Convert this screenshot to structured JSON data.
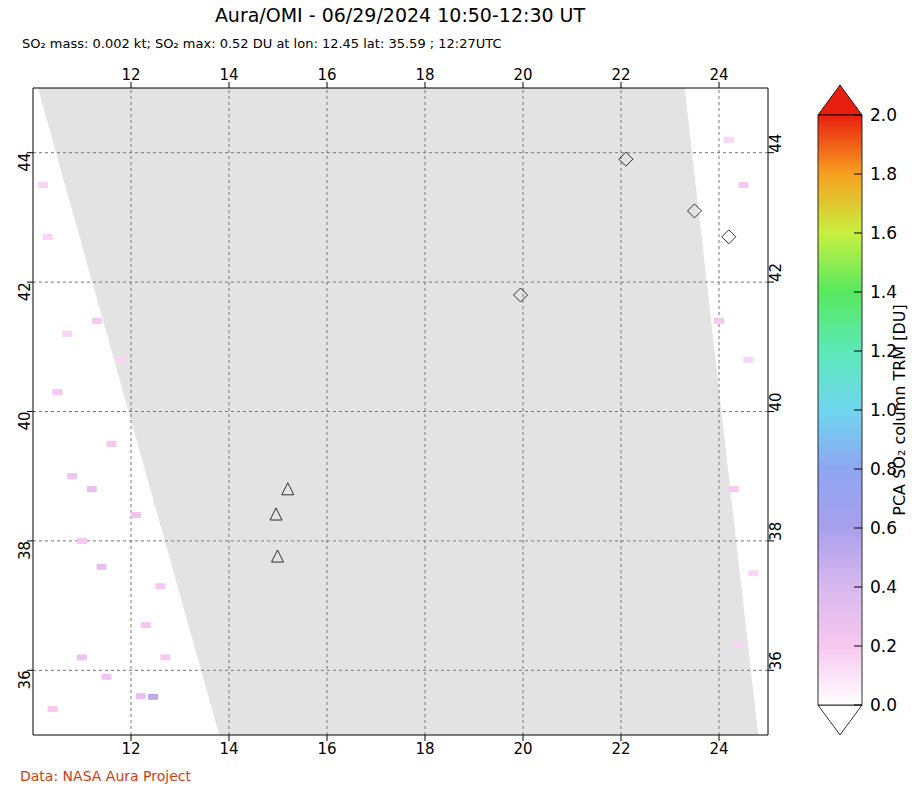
{
  "chart_data": {
    "type": "map",
    "title": "Aura/OMI - 06/29/2024 10:50-12:30 UT",
    "subtitle": "SO₂ mass: 0.002 kt; SO₂ max: 0.52 DU at lon: 12.45 lat: 35.59 ; 12:27UTC",
    "source": "Data: NASA Aura Project",
    "xlim": [
      10,
      25
    ],
    "ylim": [
      35,
      45
    ],
    "xticks": [
      12,
      14,
      16,
      18,
      20,
      22,
      24
    ],
    "yticks": [
      36,
      38,
      40,
      42,
      44
    ],
    "grid": true,
    "color": "#e3e3e3",
    "swath": {
      "x": [
        10.1,
        13.8,
        23.3,
        24.8
      ],
      "low": [
        45,
        35,
        35,
        35
      ],
      "high": [
        45,
        45,
        45,
        35
      ]
    },
    "pixels": {
      "x": [
        10.5,
        10.8,
        11.2,
        11.6,
        12.1,
        11.4,
        12.3,
        11.0,
        12.2,
        12.45,
        10.7,
        11.3,
        10.3,
        11.0,
        12.6,
        11.8,
        10.4,
        11.5,
        10.2,
        12.7,
        24.2,
        24.5,
        24.0,
        24.6,
        24.3,
        24.7,
        24.4
      ],
      "y": [
        40.3,
        39.0,
        38.8,
        39.5,
        38.4,
        37.6,
        36.7,
        36.2,
        35.6,
        35.59,
        41.2,
        41.4,
        42.7,
        38.0,
        37.3,
        40.8,
        35.4,
        35.9,
        43.5,
        36.2,
        44.2,
        43.5,
        41.4,
        40.8,
        38.8,
        37.5,
        36.4
      ],
      "values": [
        0.2,
        0.25,
        0.3,
        0.2,
        0.25,
        0.3,
        0.2,
        0.25,
        0.3,
        0.52,
        0.15,
        0.2,
        0.15,
        0.2,
        0.2,
        0.15,
        0.2,
        0.25,
        0.15,
        0.2,
        0.15,
        0.2,
        0.2,
        0.15,
        0.2,
        0.15,
        0.15
      ]
    },
    "volcanoes": {
      "x": [
        15.2,
        14.96,
        14.99
      ],
      "y": [
        38.79,
        38.4,
        37.75
      ],
      "marker": "triangle"
    },
    "sites": {
      "x": [
        22.1,
        24.2,
        23.5,
        19.95
      ],
      "y": [
        43.9,
        42.7,
        43.1,
        41.8
      ],
      "marker": "diamond"
    },
    "colorbar": {
      "label": "PCA SO₂ column TRM [DU]",
      "range": [
        0,
        2
      ],
      "ticks": [
        {
          "value": 0,
          "label": "0.0"
        },
        {
          "value": 0.2,
          "label": "0.2"
        },
        {
          "value": 0.4,
          "label": "0.4"
        },
        {
          "value": 0.6,
          "label": "0.6"
        },
        {
          "value": 0.8,
          "label": "0.8"
        },
        {
          "value": 1,
          "label": "1.0"
        },
        {
          "value": 1.2,
          "label": "1.2"
        },
        {
          "value": 1.4,
          "label": "1.4"
        },
        {
          "value": 1.6,
          "label": "1.6"
        },
        {
          "value": 1.8,
          "label": "1.8"
        },
        {
          "value": 2,
          "label": "2.0"
        }
      ],
      "colors": [
        "#ffffff",
        "#f6c8ef",
        "#d8b8ee",
        "#a9a0ec",
        "#8fa6f2",
        "#6fd6ee",
        "#5ee8b8",
        "#58e860",
        "#c8f040",
        "#f6a020",
        "#e81e10"
      ]
    }
  }
}
